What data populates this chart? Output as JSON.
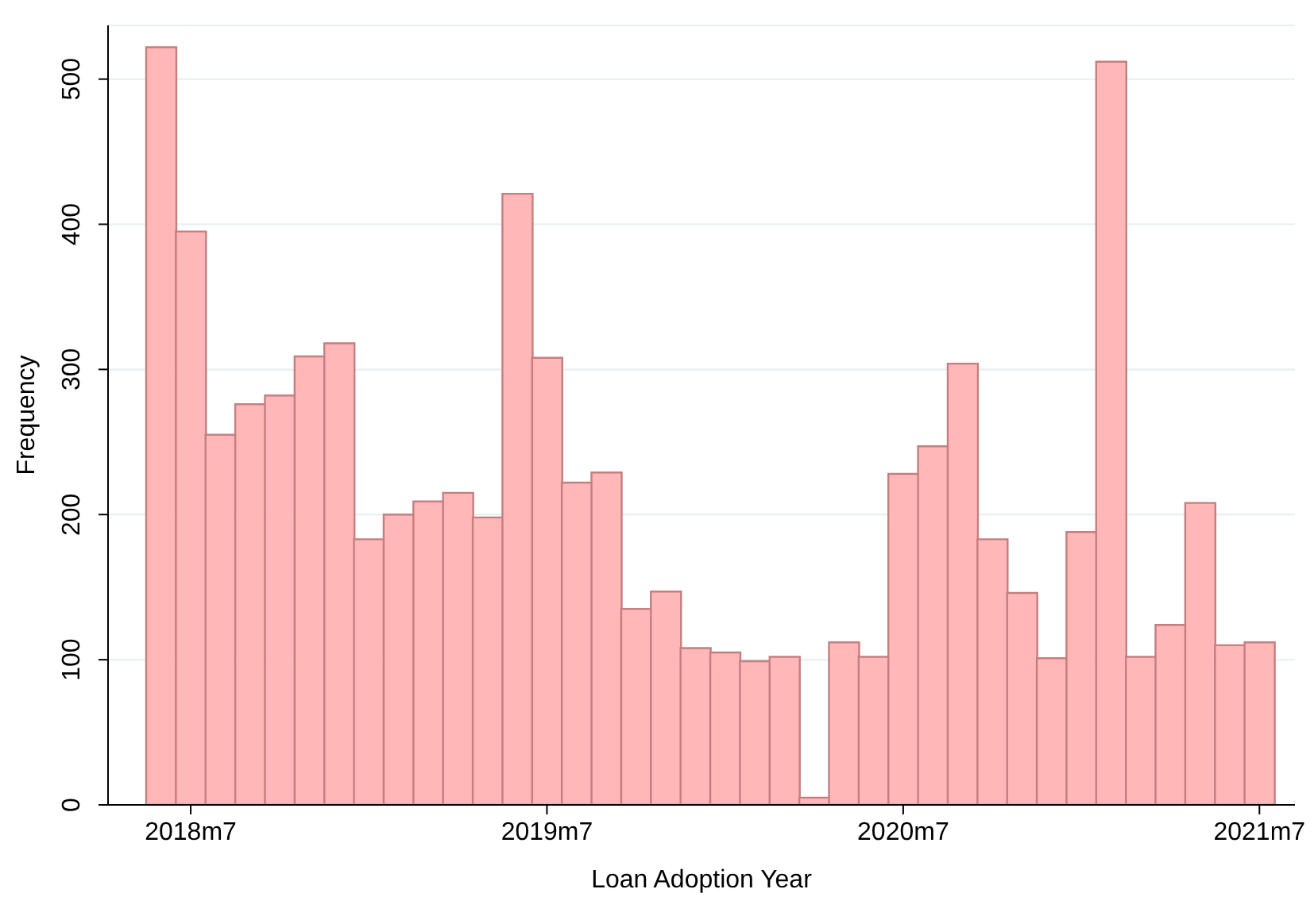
{
  "chart_data": {
    "type": "bar",
    "xlabel": "Loan Adoption Year",
    "ylabel": "Frequency",
    "categories": [
      null,
      "2018m7",
      null,
      null,
      null,
      null,
      null,
      null,
      null,
      null,
      null,
      null,
      null,
      "2019m7",
      null,
      null,
      null,
      null,
      null,
      null,
      null,
      null,
      null,
      null,
      null,
      "2020m7",
      null,
      null,
      null,
      null,
      null,
      null,
      null,
      null,
      null,
      null,
      null,
      "2021m7"
    ],
    "values": [
      522,
      395,
      255,
      276,
      282,
      309,
      318,
      183,
      200,
      209,
      215,
      198,
      421,
      308,
      222,
      229,
      135,
      147,
      108,
      105,
      99,
      102,
      5,
      112,
      102,
      228,
      247,
      304,
      183,
      146,
      101,
      188,
      512,
      102,
      124,
      208,
      110,
      112
    ],
    "color": "#ffb3b3",
    "ylim": [
      0,
      537
    ],
    "yticks": [
      0,
      100,
      200,
      300,
      400,
      500
    ],
    "grid": "y"
  }
}
